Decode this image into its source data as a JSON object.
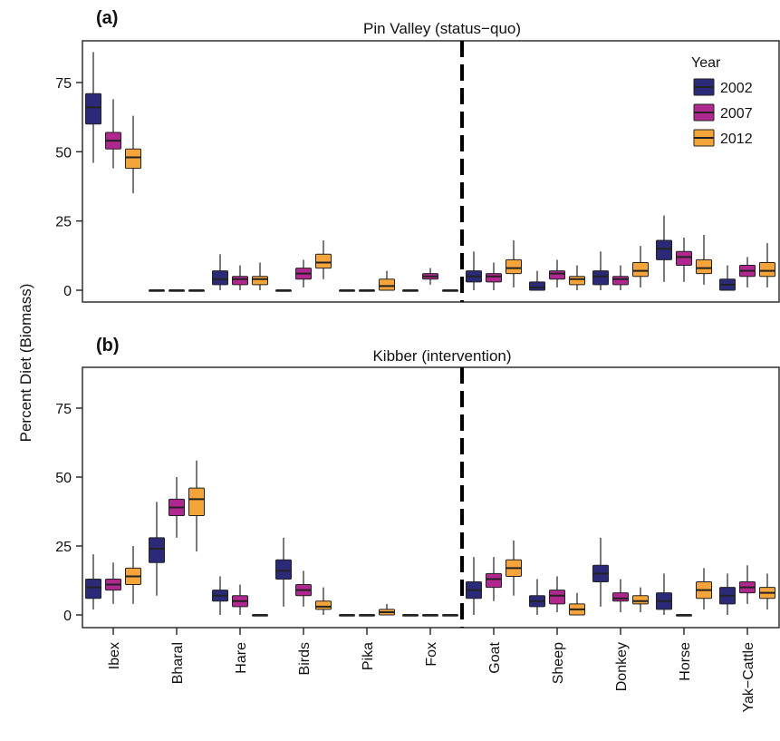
{
  "colors": {
    "2002": "#2b2a78",
    "2007": "#b0278f",
    "2012": "#f5a43a",
    "outline": "#222222",
    "divider": "#000000"
  },
  "chart_data": {
    "type": "box",
    "ylabel": "Percent Diet (Biomass)",
    "categories": [
      "Ibex",
      "Bharal",
      "Hare",
      "Birds",
      "Pika",
      "Fox",
      "Goat",
      "Sheep",
      "Donkey",
      "Horse",
      "Yak−Cattle"
    ],
    "y_ticks": [
      "0",
      "25",
      "50",
      "75"
    ],
    "ylim": [
      -3,
      90
    ],
    "legend": {
      "title": "Year",
      "entries": [
        "2002",
        "2007",
        "2012"
      ],
      "position": "top-right of panel (a)"
    },
    "divider_between": [
      "Fox",
      "Goat"
    ],
    "box_fields": [
      "wlo",
      "q1",
      "median",
      "q3",
      "whi"
    ],
    "panels": [
      {
        "letter": "(a)",
        "title": "Pin Valley (status−quo)",
        "boxes": {
          "Ibex": [
            [
              46,
              60,
              66,
              71,
              86
            ],
            [
              44,
              51,
              54,
              57,
              69
            ],
            [
              35,
              44,
              48,
              51,
              63
            ]
          ],
          "Bharal": [
            [
              0,
              0,
              0,
              0,
              0
            ],
            [
              0,
              0,
              0,
              0,
              0
            ],
            [
              0,
              0,
              0,
              0,
              0
            ]
          ],
          "Hare": [
            [
              0,
              2,
              4,
              7,
              13
            ],
            [
              0,
              2,
              4,
              5,
              9
            ],
            [
              0,
              2,
              4,
              5,
              10
            ]
          ],
          "Birds": [
            [
              0,
              0,
              0,
              0,
              0
            ],
            [
              1,
              4,
              6,
              8,
              11
            ],
            [
              4,
              8,
              10,
              13,
              18
            ]
          ],
          "Pika": [
            [
              0,
              0,
              0,
              0,
              0
            ],
            [
              0,
              0,
              0,
              0,
              0
            ],
            [
              0,
              0,
              1.5,
              4,
              7
            ]
          ],
          "Fox": [
            [
              0,
              0,
              0,
              0,
              0
            ],
            [
              2,
              4,
              5,
              6,
              8
            ],
            [
              0,
              0,
              0,
              0,
              0
            ]
          ],
          "Goat": [
            [
              0,
              3,
              5,
              7,
              14
            ],
            [
              0,
              3,
              5,
              6,
              10
            ],
            [
              1,
              6,
              8,
              11,
              18
            ]
          ],
          "Sheep": [
            [
              0,
              0,
              1,
              3,
              7
            ],
            [
              1,
              4,
              6,
              7,
              11
            ],
            [
              0,
              2,
              4,
              5,
              9
            ]
          ],
          "Donkey": [
            [
              0,
              2,
              5,
              7,
              14
            ],
            [
              0,
              2,
              4,
              5,
              9
            ],
            [
              1,
              5,
              7,
              10,
              16
            ]
          ],
          "Horse": [
            [
              3,
              11,
              15,
              18,
              27
            ],
            [
              3,
              9,
              12,
              14,
              19
            ],
            [
              2,
              6,
              8,
              11,
              20
            ]
          ],
          "Yak−Cattle": [
            [
              0,
              0,
              2,
              4,
              9
            ],
            [
              1,
              5,
              7,
              9,
              12
            ],
            [
              1,
              5,
              7,
              10,
              17
            ]
          ]
        }
      },
      {
        "letter": "(b)",
        "title": "Kibber (intervention)",
        "boxes": {
          "Ibex": [
            [
              2,
              6,
              10,
              13,
              22
            ],
            [
              4,
              9,
              11,
              13,
              19
            ],
            [
              4,
              11,
              14,
              17,
              25
            ]
          ],
          "Bharal": [
            [
              7,
              19,
              24,
              28,
              41
            ],
            [
              28,
              36,
              39,
              42,
              50
            ],
            [
              23,
              36,
              42,
              46,
              56
            ]
          ],
          "Hare": [
            [
              0,
              5,
              7,
              9,
              14
            ],
            [
              0,
              3,
              5,
              7,
              11
            ],
            [
              0,
              0,
              0,
              0,
              0
            ]
          ],
          "Birds": [
            [
              3,
              13,
              16,
              20,
              28
            ],
            [
              3,
              7,
              9,
              11,
              16
            ],
            [
              0,
              2,
              3,
              5,
              10
            ]
          ],
          "Pika": [
            [
              0,
              0,
              0,
              0,
              0
            ],
            [
              0,
              0,
              0,
              0,
              0
            ],
            [
              0,
              0,
              1,
              2,
              4
            ]
          ],
          "Fox": [
            [
              0,
              0,
              0,
              0,
              0
            ],
            [
              0,
              0,
              0,
              0,
              0
            ],
            [
              0,
              0,
              0,
              0,
              0
            ]
          ],
          "Goat": [
            [
              0,
              6,
              9,
              12,
              21
            ],
            [
              5,
              10,
              13,
              15,
              21
            ],
            [
              7,
              14,
              17,
              20,
              27
            ]
          ],
          "Sheep": [
            [
              0,
              3,
              5,
              7,
              13
            ],
            [
              1,
              4,
              7,
              9,
              14
            ],
            [
              0,
              0,
              2,
              4,
              8
            ]
          ],
          "Donkey": [
            [
              3,
              12,
              15,
              18,
              28
            ],
            [
              1,
              5,
              6,
              8,
              13
            ],
            [
              1,
              4,
              5,
              7,
              10
            ]
          ],
          "Horse": [
            [
              0,
              2,
              5,
              8,
              15
            ],
            [
              0,
              0,
              0,
              0,
              0
            ],
            [
              2,
              6,
              9,
              12,
              17
            ]
          ],
          "Yak−Cattle": [
            [
              0,
              4,
              7,
              10,
              15
            ],
            [
              4,
              8,
              10,
              12,
              18
            ],
            [
              2,
              6,
              8,
              10,
              15
            ]
          ]
        }
      }
    ]
  }
}
